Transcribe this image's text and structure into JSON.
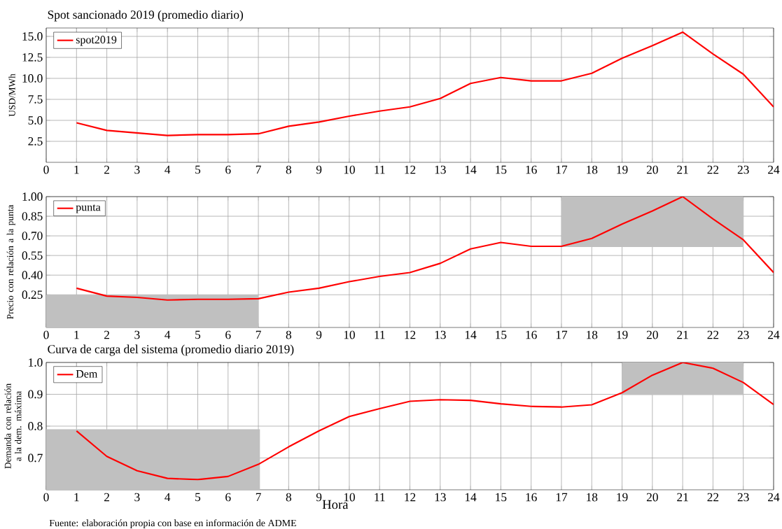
{
  "chart_data": [
    {
      "type": "line",
      "title": "Spot sancionado 2019 (promedio diario)",
      "ylabel": "USD/MWh",
      "x": [
        1,
        2,
        3,
        4,
        5,
        6,
        7,
        8,
        9,
        10,
        11,
        12,
        13,
        14,
        15,
        16,
        17,
        18,
        19,
        20,
        21,
        22,
        23,
        24
      ],
      "series": [
        {
          "name": "spot2019",
          "color": "#ff0000",
          "values": [
            4.7,
            3.8,
            3.5,
            3.2,
            3.3,
            3.3,
            3.4,
            4.3,
            4.8,
            5.5,
            6.1,
            6.6,
            7.6,
            9.4,
            10.1,
            9.7,
            9.7,
            10.6,
            12.4,
            13.9,
            15.5,
            12.9,
            10.5,
            6.6
          ]
        }
      ],
      "xlim": [
        0,
        24
      ],
      "xticks": [
        0,
        1,
        2,
        3,
        4,
        5,
        6,
        7,
        8,
        9,
        10,
        11,
        12,
        13,
        14,
        15,
        16,
        17,
        18,
        19,
        20,
        21,
        22,
        23,
        24
      ],
      "ylim": [
        0,
        16
      ],
      "yticks": [
        {
          "value": 2.5,
          "label": "2.5"
        },
        {
          "value": 5,
          "label": "5.0"
        },
        {
          "value": 7.5,
          "label": "7.5"
        },
        {
          "value": 10,
          "label": "10.0"
        },
        {
          "value": 12.5,
          "label": "12.5"
        },
        {
          "value": 15,
          "label": "15.0"
        }
      ],
      "grid": true,
      "legend": "top left",
      "marker": "none",
      "line_style": "solid"
    },
    {
      "type": "line",
      "ylabel": "Precio con relación a la punta",
      "x": [
        1,
        2,
        3,
        4,
        5,
        6,
        7,
        8,
        9,
        10,
        11,
        12,
        13,
        14,
        15,
        16,
        17,
        18,
        19,
        20,
        21,
        22,
        23,
        24
      ],
      "series": [
        {
          "type": "area",
          "color": "#c0c0c0",
          "x": [
            0,
            7
          ],
          "values": [
            0.25,
            0.25
          ]
        },
        {
          "type": "line",
          "color": "#c0c0c0",
          "x": [
            17,
            23
          ],
          "values": [
            0.62,
            0.62
          ],
          "lower": [
            0.62,
            0.62
          ],
          "upper": [
            1.0,
            1.0
          ]
        },
        {
          "name": "punta",
          "color": "#ff0000",
          "values": [
            0.3,
            0.24,
            0.23,
            0.21,
            0.215,
            0.215,
            0.22,
            0.27,
            0.3,
            0.35,
            0.39,
            0.42,
            0.49,
            0.6,
            0.65,
            0.62,
            0.62,
            0.68,
            0.79,
            0.89,
            1.0,
            0.83,
            0.67,
            0.42
          ]
        }
      ],
      "xlim": [
        0,
        24
      ],
      "xticks": [
        0,
        1,
        2,
        3,
        4,
        5,
        6,
        7,
        8,
        9,
        10,
        11,
        12,
        13,
        14,
        15,
        16,
        17,
        18,
        19,
        20,
        21,
        22,
        23,
        24
      ],
      "ylim": [
        0,
        1.0
      ],
      "yticks": [
        {
          "value": 0.25,
          "label": "0.25"
        },
        {
          "value": 0.4,
          "label": "0.40"
        },
        {
          "value": 0.55,
          "label": "0.55"
        },
        {
          "value": 0.7,
          "label": "0.70"
        },
        {
          "value": 0.85,
          "label": "0.85"
        },
        {
          "value": 1.0,
          "label": "1.00"
        }
      ],
      "grid": true,
      "legend": "top left",
      "marker": "none",
      "line_style": "solid"
    },
    {
      "type": "line",
      "title": "Curva de carga del sistema (promedio diario 2019)",
      "ylabel": "Demanda con relación a la dem. máxima",
      "xlabel": "Hora",
      "annotations": [
        "Fuente: elaboración propia con base en información de ADME"
      ],
      "x": [
        1,
        2,
        3,
        4,
        5,
        6,
        7,
        8,
        9,
        10,
        11,
        12,
        13,
        14,
        15,
        16,
        17,
        18,
        19,
        20,
        21,
        22,
        23,
        24
      ],
      "series": [
        {
          "type": "area",
          "color": "#c0c0c0",
          "x": [
            0,
            7.05
          ],
          "values": [
            0.79,
            0.79
          ]
        },
        {
          "type": "line",
          "color": "#c0c0c0",
          "x": [
            19,
            23
          ],
          "values": [
            0.9,
            0.9
          ],
          "lower": [
            0.9,
            0.9
          ],
          "upper": [
            1.0,
            1.0
          ]
        },
        {
          "name": "Dem",
          "color": "#ff0000",
          "values": [
            0.785,
            0.705,
            0.66,
            0.636,
            0.632,
            0.642,
            0.68,
            0.735,
            0.785,
            0.83,
            0.855,
            0.878,
            0.883,
            0.881,
            0.87,
            0.862,
            0.86,
            0.867,
            0.905,
            0.96,
            1.0,
            0.982,
            0.937,
            0.868
          ]
        }
      ],
      "xlim": [
        0,
        24
      ],
      "xticks": [
        0,
        1,
        2,
        3,
        4,
        5,
        6,
        7,
        8,
        9,
        10,
        11,
        12,
        13,
        14,
        15,
        16,
        17,
        18,
        19,
        20,
        21,
        22,
        23,
        24
      ],
      "ylim": [
        0.6,
        1.0
      ],
      "yticks": [
        {
          "value": 0.7,
          "label": "0.7"
        },
        {
          "value": 0.8,
          "label": "0.8"
        },
        {
          "value": 0.9,
          "label": "0.9"
        },
        {
          "value": 1.0,
          "label": "1.0"
        }
      ],
      "grid": true,
      "legend": "top left",
      "marker": "none",
      "line_style": "solid"
    }
  ]
}
